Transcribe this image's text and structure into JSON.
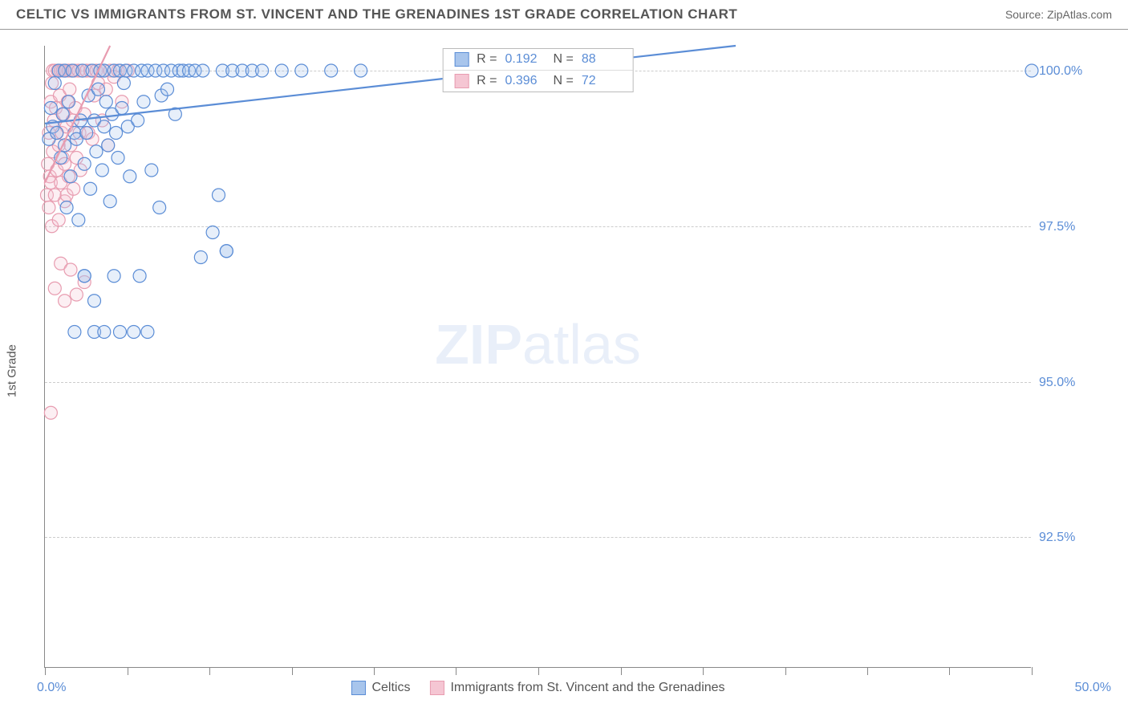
{
  "header": {
    "title": "CELTIC VS IMMIGRANTS FROM ST. VINCENT AND THE GRENADINES 1ST GRADE CORRELATION CHART",
    "source_prefix": "Source: ",
    "source_name": "ZipAtlas.com"
  },
  "chart": {
    "type": "scatter",
    "ylabel": "1st Grade",
    "watermark_bold": "ZIP",
    "watermark_light": "atlas",
    "xlim": [
      0.0,
      50.0
    ],
    "ylim": [
      90.4,
      100.4
    ],
    "x_ticks": [
      0,
      4.17,
      8.33,
      12.5,
      16.67,
      20.83,
      25.0,
      29.17,
      33.33,
      37.5,
      41.67,
      45.83,
      50.0
    ],
    "x_label_min": "0.0%",
    "x_label_max": "50.0%",
    "y_gridlines": [
      {
        "value": 92.5,
        "label": "92.5%"
      },
      {
        "value": 95.0,
        "label": "95.0%"
      },
      {
        "value": 97.5,
        "label": "97.5%"
      },
      {
        "value": 100.0,
        "label": "100.0%"
      }
    ],
    "marker_radius": 8,
    "marker_stroke_width": 1.2,
    "marker_fill_opacity": 0.28,
    "series": [
      {
        "id": "celtics",
        "name": "Celtics",
        "color_stroke": "#5b8dd6",
        "color_fill": "#a8c5ec",
        "r_value": "0.192",
        "n_value": "88",
        "trend": {
          "x1": 0.0,
          "y1": 99.15,
          "x2": 35.0,
          "y2": 100.4
        },
        "points": [
          [
            0.2,
            98.9
          ],
          [
            0.3,
            99.4
          ],
          [
            0.4,
            99.1
          ],
          [
            0.5,
            99.8
          ],
          [
            0.6,
            99.0
          ],
          [
            0.7,
            100.0
          ],
          [
            0.8,
            98.6
          ],
          [
            0.9,
            99.3
          ],
          [
            1.0,
            100.0
          ],
          [
            1.0,
            98.8
          ],
          [
            1.1,
            97.8
          ],
          [
            1.2,
            99.5
          ],
          [
            1.3,
            98.3
          ],
          [
            1.4,
            100.0
          ],
          [
            1.5,
            99.0
          ],
          [
            1.6,
            98.9
          ],
          [
            1.7,
            97.6
          ],
          [
            1.8,
            99.2
          ],
          [
            1.9,
            100.0
          ],
          [
            2.0,
            98.5
          ],
          [
            2.0,
            96.7
          ],
          [
            2.1,
            99.0
          ],
          [
            2.2,
            99.6
          ],
          [
            2.3,
            98.1
          ],
          [
            2.4,
            100.0
          ],
          [
            2.5,
            99.2
          ],
          [
            2.6,
            98.7
          ],
          [
            2.7,
            99.7
          ],
          [
            2.8,
            100.0
          ],
          [
            2.9,
            98.4
          ],
          [
            3.0,
            99.1
          ],
          [
            3.0,
            100.0
          ],
          [
            3.1,
            99.5
          ],
          [
            3.2,
            98.8
          ],
          [
            3.3,
            97.9
          ],
          [
            3.4,
            99.3
          ],
          [
            3.5,
            100.0
          ],
          [
            3.6,
            99.0
          ],
          [
            3.7,
            98.6
          ],
          [
            3.8,
            100.0
          ],
          [
            3.9,
            99.4
          ],
          [
            4.0,
            99.8
          ],
          [
            4.1,
            100.0
          ],
          [
            4.2,
            99.1
          ],
          [
            4.3,
            98.3
          ],
          [
            4.5,
            100.0
          ],
          [
            4.7,
            99.2
          ],
          [
            4.9,
            100.0
          ],
          [
            5.0,
            99.5
          ],
          [
            5.2,
            100.0
          ],
          [
            5.4,
            98.4
          ],
          [
            5.6,
            100.0
          ],
          [
            5.9,
            99.6
          ],
          [
            6.0,
            100.0
          ],
          [
            6.2,
            99.7
          ],
          [
            6.4,
            100.0
          ],
          [
            6.6,
            99.3
          ],
          [
            6.8,
            100.0
          ],
          [
            7.0,
            100.0
          ],
          [
            7.3,
            100.0
          ],
          [
            7.6,
            100.0
          ],
          [
            8.0,
            100.0
          ],
          [
            8.5,
            97.4
          ],
          [
            9.0,
            100.0
          ],
          [
            9.2,
            97.1
          ],
          [
            9.5,
            100.0
          ],
          [
            10.0,
            100.0
          ],
          [
            10.5,
            100.0
          ],
          [
            11.0,
            100.0
          ],
          [
            12.0,
            100.0
          ],
          [
            13.0,
            100.0
          ],
          [
            14.5,
            100.0
          ],
          [
            16.0,
            100.0
          ],
          [
            50.0,
            100.0
          ],
          [
            1.5,
            95.8
          ],
          [
            2.5,
            95.8
          ],
          [
            3.0,
            95.8
          ],
          [
            3.8,
            95.8
          ],
          [
            4.5,
            95.8
          ],
          [
            5.2,
            95.8
          ],
          [
            2.0,
            96.7
          ],
          [
            3.5,
            96.7
          ],
          [
            4.8,
            96.7
          ],
          [
            5.8,
            97.8
          ],
          [
            7.9,
            97.0
          ],
          [
            9.2,
            97.1
          ],
          [
            8.8,
            98.0
          ],
          [
            2.5,
            96.3
          ]
        ]
      },
      {
        "id": "immigrants",
        "name": "Immigrants from St. Vincent and the Grenadines",
        "color_stroke": "#e89cb0",
        "color_fill": "#f5c6d3",
        "r_value": "0.396",
        "n_value": "72",
        "trend": {
          "x1": 0.0,
          "y1": 98.2,
          "x2": 3.3,
          "y2": 100.4
        },
        "points": [
          [
            0.1,
            98.0
          ],
          [
            0.15,
            98.5
          ],
          [
            0.2,
            99.0
          ],
          [
            0.2,
            97.8
          ],
          [
            0.25,
            98.3
          ],
          [
            0.3,
            99.5
          ],
          [
            0.3,
            98.2
          ],
          [
            0.35,
            99.8
          ],
          [
            0.35,
            97.5
          ],
          [
            0.4,
            100.0
          ],
          [
            0.4,
            98.7
          ],
          [
            0.45,
            99.2
          ],
          [
            0.5,
            98.0
          ],
          [
            0.5,
            100.0
          ],
          [
            0.55,
            99.4
          ],
          [
            0.6,
            98.4
          ],
          [
            0.6,
            99.0
          ],
          [
            0.65,
            100.0
          ],
          [
            0.7,
            98.8
          ],
          [
            0.7,
            97.6
          ],
          [
            0.75,
            99.6
          ],
          [
            0.8,
            100.0
          ],
          [
            0.8,
            98.2
          ],
          [
            0.85,
            99.0
          ],
          [
            0.9,
            98.6
          ],
          [
            0.9,
            100.0
          ],
          [
            0.95,
            99.3
          ],
          [
            1.0,
            97.9
          ],
          [
            1.0,
            98.5
          ],
          [
            1.05,
            100.0
          ],
          [
            1.1,
            99.1
          ],
          [
            1.1,
            98.0
          ],
          [
            1.15,
            99.5
          ],
          [
            1.2,
            100.0
          ],
          [
            1.2,
            98.3
          ],
          [
            1.25,
            99.7
          ],
          [
            1.3,
            98.8
          ],
          [
            1.35,
            100.0
          ],
          [
            1.4,
            99.2
          ],
          [
            1.45,
            98.1
          ],
          [
            1.5,
            100.0
          ],
          [
            1.55,
            99.4
          ],
          [
            1.6,
            98.6
          ],
          [
            1.7,
            100.0
          ],
          [
            1.75,
            99.0
          ],
          [
            1.8,
            98.4
          ],
          [
            1.9,
            100.0
          ],
          [
            2.0,
            99.3
          ],
          [
            2.1,
            100.0
          ],
          [
            2.2,
            99.0
          ],
          [
            2.3,
            100.0
          ],
          [
            2.4,
            98.9
          ],
          [
            2.5,
            99.6
          ],
          [
            2.6,
            100.0
          ],
          [
            2.7,
            99.8
          ],
          [
            2.8,
            100.0
          ],
          [
            2.9,
            99.2
          ],
          [
            3.0,
            100.0
          ],
          [
            3.1,
            99.7
          ],
          [
            3.2,
            98.8
          ],
          [
            3.3,
            100.0
          ],
          [
            3.5,
            99.9
          ],
          [
            3.7,
            100.0
          ],
          [
            3.9,
            99.5
          ],
          [
            4.2,
            100.0
          ],
          [
            0.5,
            96.5
          ],
          [
            0.8,
            96.9
          ],
          [
            1.0,
            96.3
          ],
          [
            1.3,
            96.8
          ],
          [
            1.6,
            96.4
          ],
          [
            2.0,
            96.6
          ],
          [
            0.3,
            94.5
          ]
        ]
      }
    ],
    "legend_top": {
      "r_label": "R =",
      "n_label": "N ="
    }
  }
}
